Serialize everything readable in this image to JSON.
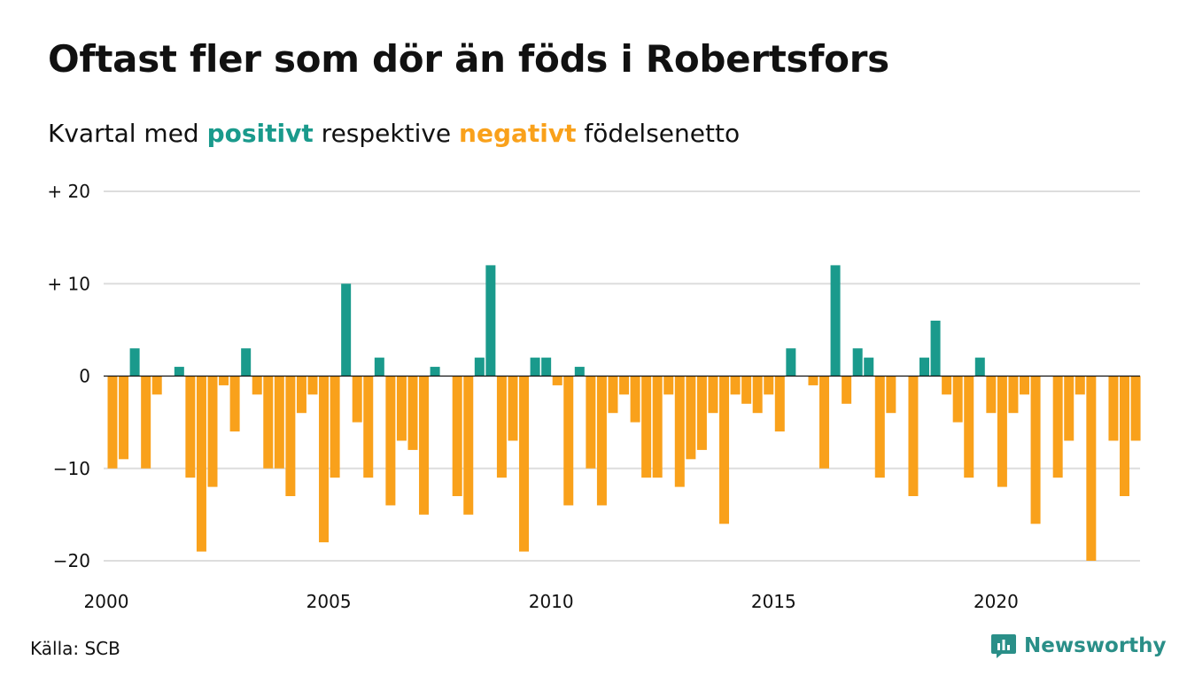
{
  "title": "Oftast fler som dör än föds i Robertsfors",
  "subtitle": {
    "prefix": "Kvartal med ",
    "positive": "positivt",
    "middle": " respektive ",
    "negative": "negativt",
    "suffix": " födelsenetto"
  },
  "source": "Källa: SCB",
  "logo": {
    "text": "Newsworthy",
    "icon": "newsworthy-logo-icon"
  },
  "colors": {
    "positive": "#1a9a8c",
    "negative": "#f9a11b",
    "grid": "#dddddd",
    "zero": "#111111",
    "brand": "#2a8f88"
  },
  "chart_data": {
    "type": "bar",
    "grid": true,
    "ylim": [
      -20,
      20
    ],
    "yticks": [
      {
        "value": 20,
        "label": "+ 20"
      },
      {
        "value": 10,
        "label": "+ 10"
      },
      {
        "value": 0,
        "label": "0"
      },
      {
        "value": -10,
        "label": "−10"
      },
      {
        "value": -20,
        "label": "−20"
      }
    ],
    "x_start": "2000Q1",
    "xticks": [
      {
        "year": 2000,
        "label": "2000"
      },
      {
        "year": 2005,
        "label": "2005"
      },
      {
        "year": 2010,
        "label": "2010"
      },
      {
        "year": 2015,
        "label": "2015"
      },
      {
        "year": 2020,
        "label": "2020"
      }
    ],
    "values": [
      -10,
      -9,
      3,
      -10,
      -2,
      0,
      1,
      -11,
      -19,
      -12,
      -1,
      -6,
      3,
      -2,
      -10,
      -10,
      -13,
      -4,
      -2,
      -18,
      -11,
      10,
      -5,
      -11,
      2,
      -14,
      -7,
      -8,
      -15,
      1,
      0,
      -13,
      -15,
      2,
      12,
      -11,
      -7,
      -19,
      2,
      2,
      -1,
      -14,
      1,
      -10,
      -14,
      -4,
      -2,
      -5,
      -11,
      -11,
      -2,
      -12,
      -9,
      -8,
      -4,
      -16,
      -2,
      -3,
      -4,
      -2,
      -6,
      3,
      0,
      -1,
      -10,
      12,
      -3,
      3,
      2,
      -11,
      -4,
      0,
      -13,
      2,
      6,
      -2,
      -5,
      -11,
      2,
      -4,
      -12,
      -4,
      -2,
      -16,
      0,
      -11,
      -7,
      -2,
      -20,
      0,
      -7,
      -13,
      -7
    ]
  }
}
